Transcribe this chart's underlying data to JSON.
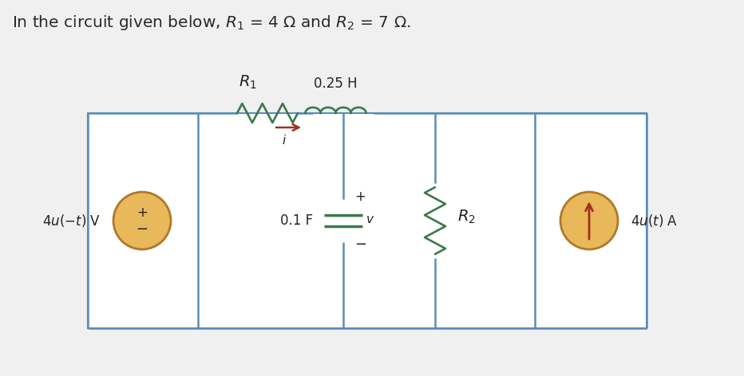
{
  "title_text": "In the circuit given below, $R_1$ = 4 Ω and $R_2$ = 7 Ω.",
  "title_color": "#2a2a2a",
  "title_fontsize": 14.5,
  "bg_color": "#f0f0f0",
  "circuit_bg": "#ffffff",
  "wire_color": "#5b8db8",
  "wire_lw": 1.8,
  "component_color": "#3a7a4a",
  "resistor_color": "#3a7a4a",
  "source_fill": "#e8b85a",
  "source_stroke": "#b07828",
  "arrow_color": "#a03020",
  "text_color": "#222222",
  "label_R1": "$R_1$",
  "label_inductor": "0.25 H",
  "label_capacitor": "0.1 F",
  "label_R2": "$R_2$",
  "label_v_source": "4$u$(−$t$) V",
  "label_i_source": "4$u$($t$) A",
  "label_i": "$i$",
  "label_v_plus": "+",
  "label_v_minus": "−",
  "label_v": "$v$"
}
